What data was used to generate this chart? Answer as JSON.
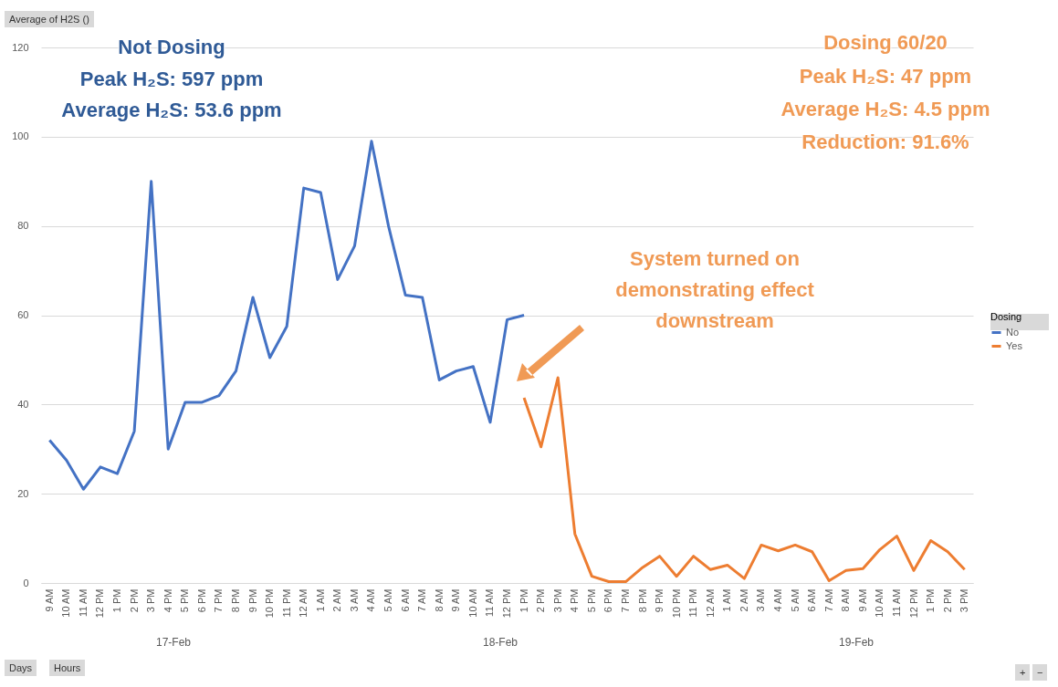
{
  "chart_data": {
    "type": "line",
    "ylabel": "Average of H2S ()",
    "legend_title": "Dosing",
    "legend": "right",
    "grid": "y",
    "line_style": "solid",
    "marker": "none",
    "categories": [
      "9 AM",
      "10 AM",
      "11 AM",
      "12 PM",
      "1 PM",
      "2 PM",
      "3 PM",
      "4 PM",
      "5 PM",
      "6 PM",
      "7 PM",
      "8 PM",
      "9 PM",
      "10 PM",
      "11 PM",
      "12 AM",
      "1 AM",
      "2 AM",
      "3 AM",
      "4 AM",
      "5 AM",
      "6 AM",
      "7 AM",
      "8 AM",
      "9 AM",
      "10 AM",
      "11 AM",
      "12 PM",
      "1 PM",
      "2 PM",
      "3 PM",
      "4 PM",
      "5 PM",
      "6 PM",
      "7 PM",
      "8 PM",
      "9 PM",
      "10 PM",
      "11 PM",
      "12 AM",
      "1 AM",
      "2 AM",
      "3 AM",
      "4 AM",
      "5 AM",
      "6 AM",
      "7 AM",
      "8 AM",
      "9 AM",
      "10 AM",
      "11 AM",
      "12 PM",
      "1 PM",
      "2 PM",
      "3 PM"
    ],
    "series": [
      {
        "name": "No",
        "color": "#4472c4",
        "values": [
          32,
          27.5,
          21,
          26,
          24.5,
          34,
          90,
          30,
          40.5,
          40.5,
          42,
          47.5,
          64,
          50.5,
          57.5,
          88.5,
          87.5,
          68,
          75.5,
          99,
          80,
          64.5,
          64,
          45.5,
          47.5,
          48.5,
          36,
          59,
          60,
          null,
          null,
          null,
          null,
          null,
          null,
          null,
          null,
          null,
          null,
          null,
          null,
          null,
          null,
          null,
          null,
          null,
          null,
          null,
          null,
          null,
          null,
          null,
          null,
          null,
          null
        ]
      },
      {
        "name": "Yes",
        "color": "#ed7d31",
        "values": [
          null,
          null,
          null,
          null,
          null,
          null,
          null,
          null,
          null,
          null,
          null,
          null,
          null,
          null,
          null,
          null,
          null,
          null,
          null,
          null,
          null,
          null,
          null,
          null,
          null,
          null,
          null,
          null,
          41.5,
          30.5,
          46,
          11,
          1.5,
          0.3,
          0.3,
          3.5,
          6,
          1.5,
          6,
          3,
          4,
          1,
          8.5,
          7.2,
          8.5,
          7,
          0.5,
          2.8,
          3.2,
          7.5,
          10.5,
          2.8,
          9.5,
          7,
          3
        ]
      }
    ],
    "ylim": [
      0,
      120
    ],
    "yticks": [
      0,
      20,
      40,
      60,
      80,
      100,
      120
    ],
    "annotations": [
      "Not Dosing",
      "Peak H₂S: 597 ppm",
      "Average H₂S: 53.6 ppm",
      "Dosing 60/20",
      "Peak H₂S: 47 ppm",
      "Average H₂S: 4.5 ppm",
      "Reduction: 91.6%",
      "System turned on demonstrating effect downstream",
      "17-Feb",
      "18-Feb",
      "19-Feb",
      "Days",
      "Hours",
      "+",
      "−"
    ]
  }
}
